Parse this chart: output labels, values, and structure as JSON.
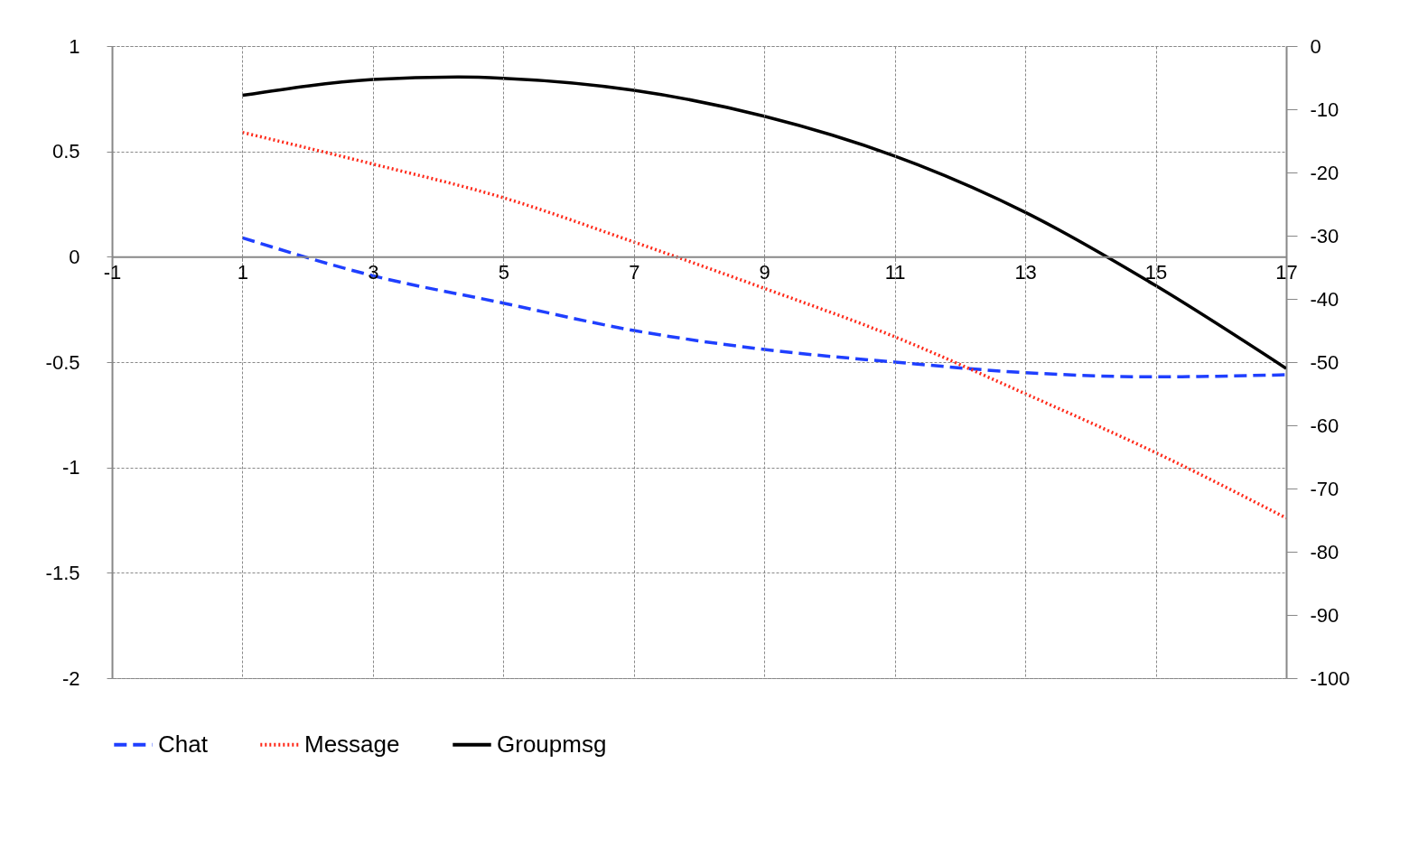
{
  "chart_data": {
    "type": "line",
    "x": [
      1,
      3,
      5,
      7,
      9,
      11,
      13,
      15,
      17
    ],
    "xlim": [
      -1,
      17
    ],
    "xticks": [
      -1,
      1,
      3,
      5,
      7,
      9,
      11,
      13,
      15,
      17
    ],
    "ylim": [
      -2,
      1
    ],
    "yticks": [
      -2,
      -1.5,
      -1,
      -0.5,
      0,
      0.5,
      1
    ],
    "y2lim": [
      -100,
      0
    ],
    "y2ticks": [
      -100,
      -90,
      -80,
      -70,
      -60,
      -50,
      -40,
      -30,
      -20,
      -10,
      0
    ],
    "series": [
      {
        "name": "Chat",
        "color": "#1f3fff",
        "line_style": "dashed",
        "values": [
          0.09,
          -0.09,
          -0.22,
          -0.35,
          -0.44,
          -0.5,
          -0.55,
          -0.57,
          -0.56
        ]
      },
      {
        "name": "Message",
        "color": "#ff2a1a",
        "line_style": "dotted",
        "values": [
          0.59,
          0.44,
          0.28,
          0.07,
          -0.15,
          -0.38,
          -0.65,
          -0.93,
          -1.24
        ]
      },
      {
        "name": "Groupmsg",
        "color": "#000000",
        "line_style": "solid",
        "axis": "y2",
        "x": [
          1,
          3,
          4.3,
          5,
          7,
          9,
          11,
          13,
          15,
          17
        ],
        "values": [
          -7.8,
          -5.3,
          -4.9,
          -5.1,
          -7,
          -11.1,
          -17.4,
          -26.3,
          -37.9,
          -51
        ]
      }
    ],
    "grid": true,
    "legend": "bottom",
    "marker": "none"
  }
}
